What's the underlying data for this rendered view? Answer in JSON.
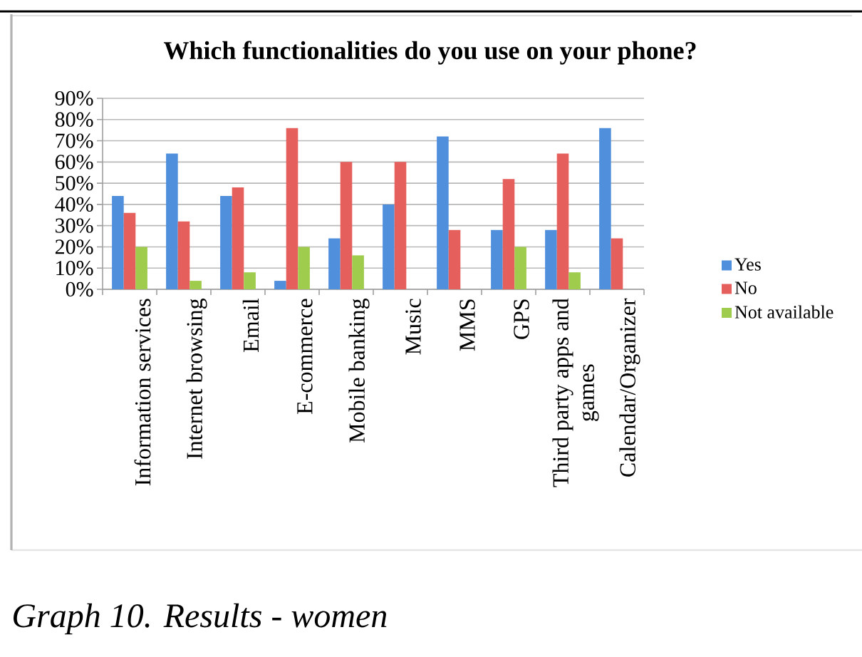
{
  "chart_data": {
    "type": "bar",
    "title": "Which functionalities do you use on your phone?",
    "categories": [
      "Information services",
      "Internet browsing",
      "Email",
      "E-commerce",
      "Mobile banking",
      "Music",
      "MMS",
      "GPS",
      "Third party apps and games",
      "Calendar/Organizer"
    ],
    "series": [
      {
        "name": "Yes",
        "color": "#4f8fdc",
        "values": [
          44,
          64,
          44,
          4,
          24,
          40,
          72,
          28,
          28,
          76
        ]
      },
      {
        "name": "No",
        "color": "#e5605c",
        "values": [
          36,
          32,
          48,
          76,
          60,
          60,
          28,
          52,
          64,
          24
        ]
      },
      {
        "name": "Not available",
        "color": "#9fcc4c",
        "values": [
          20,
          4,
          8,
          20,
          16,
          0,
          0,
          20,
          8,
          0
        ]
      }
    ],
    "ylim": [
      0,
      90
    ],
    "yticks": [
      {
        "value": 0,
        "label": "0%"
      },
      {
        "value": 10,
        "label": "10%"
      },
      {
        "value": 20,
        "label": "20%"
      },
      {
        "value": 30,
        "label": "30%"
      },
      {
        "value": 40,
        "label": "40%"
      },
      {
        "value": 50,
        "label": "50%"
      },
      {
        "value": 60,
        "label": "60%"
      },
      {
        "value": 70,
        "label": "70%"
      },
      {
        "value": 80,
        "label": "80%"
      },
      {
        "value": 90,
        "label": "90%"
      }
    ],
    "grid": "y",
    "legend": "right",
    "annotations": [
      "Graph 10. Results - women"
    ]
  }
}
